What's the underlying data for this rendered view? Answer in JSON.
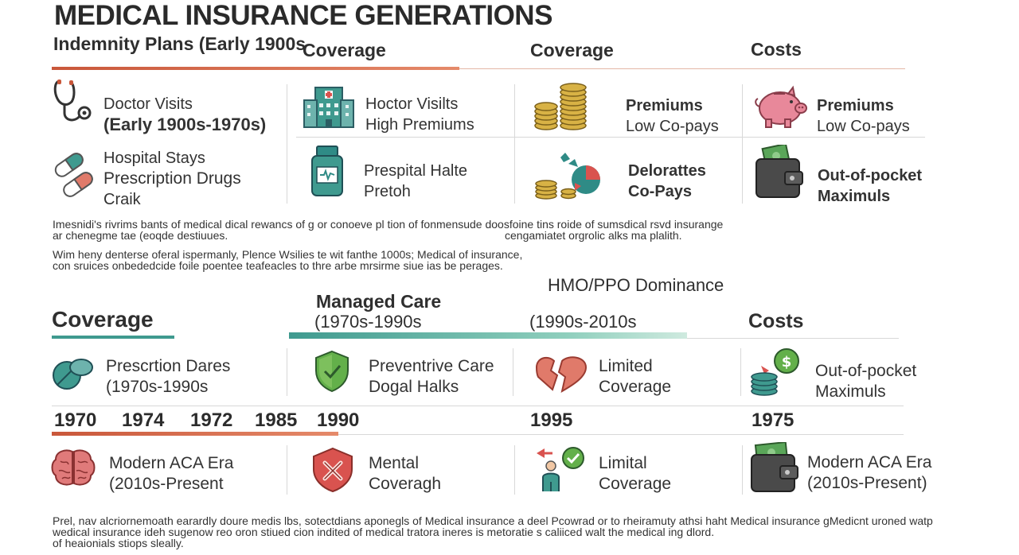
{
  "title": "MEDICAL INSURANCE GENERATIONS",
  "top_headers": {
    "era": "Indemnity Plans (Early 1900s",
    "coverage_a": "Coverage",
    "coverage_b": "Coverage",
    "costs": "Costs"
  },
  "top_rows": [
    [
      {
        "line1": "Doctor Visits",
        "line2": "(Early 1900s-1970s)"
      },
      {
        "line1": "Hoctor Visilts",
        "line2": "High Premiums"
      },
      {
        "line1": "Premiums",
        "line2": "Low Co-pays"
      },
      {
        "line1": "Premiums",
        "line2": "Low Co-pays"
      }
    ],
    [
      {
        "line1": "Hospital Stays",
        "line2": "Prescription Drugs",
        "line3": "Craik"
      },
      {
        "line1": "Prespital Halte",
        "line2": "Pretoh"
      },
      {
        "line1": "Delorattes",
        "line2": "Co-Pays"
      },
      {
        "line1": "Out-of-pocket",
        "line2": "Maximuls"
      }
    ]
  ],
  "para1": {
    "a": "Imesnidi's rivrims bants of medical dical rewancs of g or conoeve pl tion of fonmensude doosfoine tins roide of sumsdical rsvd insurange",
    "b": "ar chenegme tae (eoqde destiuues.",
    "c": "cengamiatet orgrolic alks ma plalith."
  },
  "para2": {
    "a": "Wim heny denterse oferal ispermanly, Plence Wsilies te wit fanthe 1000s; Medical of insurance,",
    "b": "con sruices onbededcide foile poentee teafeacles to thre arbe mrsirme siue ias be perages."
  },
  "mid_headers": {
    "coverage": "Coverage",
    "managed_care": "Managed Care",
    "managed_care_years": "(1970s-1990s",
    "hmo": "HMO/PPO Dominance",
    "hmo_years": "(1990s-2010s",
    "costs": "Costs"
  },
  "mid_row": [
    {
      "line1": "Prescrtion Dares",
      "line2": "(1970s-1990s"
    },
    {
      "line1": "Preventrive Care",
      "line2": "Dogal Halks"
    },
    {
      "line1": "Limited",
      "line2": "Coverage"
    },
    {
      "line1": "Out-of-pocket",
      "line2": "Maximuls"
    }
  ],
  "years": [
    "1970",
    "1974",
    "1972",
    "1985",
    "1990",
    "1995",
    "1975"
  ],
  "bottom_row": [
    {
      "line1": "Modern ACA Era",
      "line2": "(2010s-Present"
    },
    {
      "line1": "Mental",
      "line2": "Coveragh"
    },
    {
      "line1": "Limital",
      "line2": "Coverage"
    },
    {
      "line1": "Modern ACA Era",
      "line2": "(2010s-Present)"
    }
  ],
  "para3": {
    "a": "Prel, nav alcriornemoath earardly doure medis lbs, sotectdians aponegls of Medical insurance a deel Pcowrad or to rheiramuty athsi haht Medical insurance gMedicnt uroned watp",
    "b": "wedical insurance ideh sugenow reo oron stiued cion indited of medical tratora ineres is metoratie s caliiced walt the medical ing dlord.",
    "c": "of heaionials stiops sleally."
  },
  "colors": {
    "bar_orange": "#d9714e",
    "bar_teal": "#3f9a8f",
    "bar_teal_light": "#b9e0d3",
    "coin_gold": "#d8b245",
    "teal_icon": "#2f8b86",
    "pink_icon": "#e8889a",
    "red_icon": "#d9534f",
    "green_icon": "#63b04a",
    "wallet": "#4a4a4a",
    "money_green": "#5aa659"
  },
  "icons": [
    "stethoscope-icon",
    "hospital-icon",
    "coins-icon",
    "piggy-bank-icon",
    "pills-icon",
    "medicine-bottle-icon",
    "broken-coins-icon",
    "wallet-icon",
    "capsule-icon",
    "shield-check-icon",
    "broken-heart-icon",
    "money-coins-icon",
    "brain-icon",
    "medical-shield-icon",
    "person-help-icon",
    "wallet-cash-icon"
  ]
}
